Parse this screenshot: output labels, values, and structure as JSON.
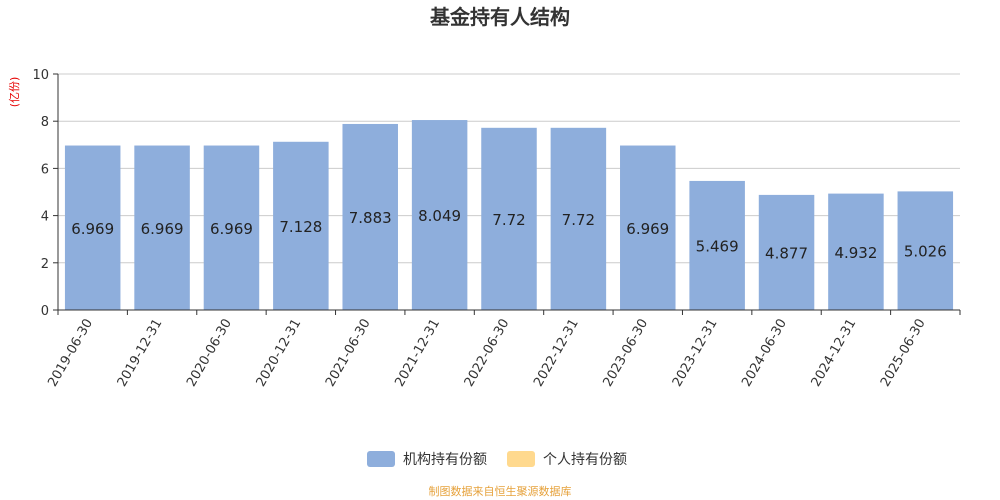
{
  "chart_data": {
    "type": "bar",
    "title": "基金持有人结构",
    "ylabel": "(亿份)",
    "ylim": [
      0,
      10
    ],
    "yticks": [
      0,
      2,
      4,
      6,
      8,
      10
    ],
    "categories": [
      "2019-06-30",
      "2019-12-31",
      "2020-06-30",
      "2020-12-31",
      "2021-06-30",
      "2021-12-31",
      "2022-06-30",
      "2022-12-31",
      "2023-06-30",
      "2023-12-31",
      "2024-06-30",
      "2024-12-31",
      "2025-06-30"
    ],
    "series": [
      {
        "name": "机构持有份额",
        "color": "#8eaedc",
        "values": [
          6.969,
          6.969,
          6.969,
          7.128,
          7.883,
          8.049,
          7.72,
          7.72,
          6.969,
          5.469,
          4.877,
          4.932,
          5.026
        ]
      },
      {
        "name": "个人持有份额",
        "color": "#ffd98e",
        "values": [
          0,
          0,
          0,
          0,
          0,
          0,
          0,
          0,
          0,
          0,
          0,
          0,
          0
        ]
      }
    ],
    "data_labels": [
      "6.969",
      "6.969",
      "6.969",
      "7.128",
      "7.883",
      "8.049",
      "7.72",
      "7.72",
      "6.969",
      "5.469",
      "4.877",
      "4.932",
      "5.026"
    ],
    "grid": true,
    "legend": "bottom-center"
  },
  "source_note": "制图数据来自恒生聚源数据库"
}
